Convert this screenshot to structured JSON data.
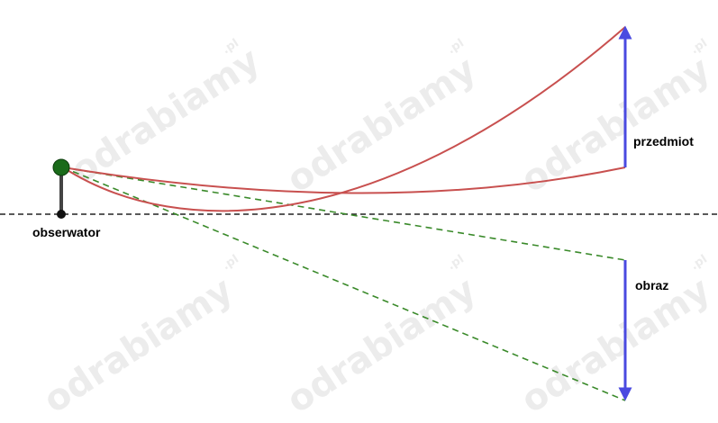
{
  "labels": {
    "observer": "obserwator",
    "object": "przedmiot",
    "image": "obraz"
  },
  "watermark": {
    "text": "odrabiamy",
    "suffix": ".pl"
  },
  "colors": {
    "horizon": "#222222",
    "observer_head": "#1a6b1a",
    "observer_body": "#444444",
    "vector": "#4a4ae0",
    "curve": "#c8504f",
    "dashed": "#3a8a2a"
  }
}
